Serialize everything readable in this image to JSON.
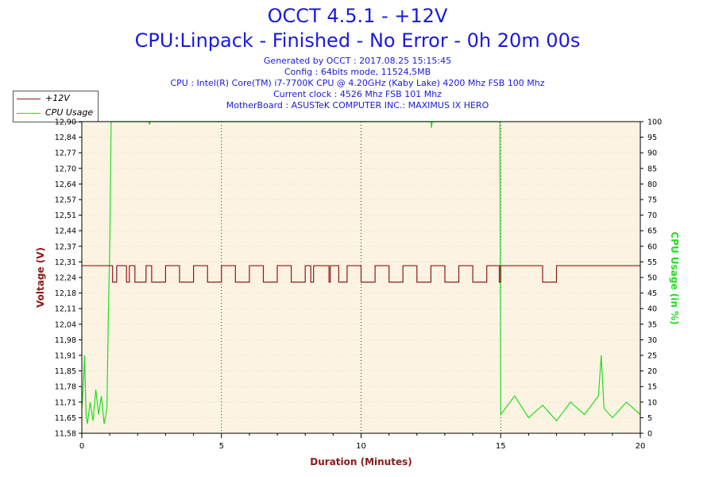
{
  "header": {
    "title": "OCCT 4.5.1 - +12V",
    "subtitle": "CPU:Linpack - Finished - No Error - 0h 20m 00s",
    "info_lines": [
      "Generated by OCCT : 2017.08.25 15:15:45",
      "Config : 64bits mode, 11524,5MB",
      "CPU : Intel(R) Core(TM) i7-7700K CPU @ 4.20GHz (Kaby Lake) 4200 Mhz FSB 100 Mhz",
      "Current clock : 4526 Mhz FSB 101 Mhz",
      "MotherBoard : ASUSTeK COMPUTER INC.: MAXIMUS IX HERO"
    ]
  },
  "colors": {
    "voltage": "#8b1a1a",
    "cpu_usage": "#22dd22",
    "plot_bg": "#fcf3e2",
    "grid": "#000000",
    "title": "#1a1adb"
  },
  "chart_data": {
    "type": "line",
    "xlabel": "Duration (Minutes)",
    "ylabel_left": "Voltage (V)",
    "ylabel_right": "CPU Usage (in %)",
    "xlim": [
      0,
      20
    ],
    "ylim_left": [
      11.58,
      12.9
    ],
    "ylim_right": [
      0,
      100
    ],
    "x_ticks": [
      "0",
      "5",
      "10",
      "15",
      "20"
    ],
    "y_left_ticks": [
      "11,58",
      "11,65",
      "11,71",
      "11,78",
      "11,85",
      "11,91",
      "11,98",
      "12,04",
      "12,11",
      "12,18",
      "12,24",
      "12,31",
      "12,37",
      "12,44",
      "12,51",
      "12,57",
      "12,64",
      "12,70",
      "12,77",
      "12,84",
      "12,90"
    ],
    "y_right_ticks": [
      "0",
      "5",
      "10",
      "15",
      "20",
      "25",
      "30",
      "35",
      "40",
      "45",
      "50",
      "55",
      "60",
      "65",
      "70",
      "75",
      "80",
      "85",
      "90",
      "95",
      "100"
    ],
    "grid": "dotted",
    "legend_position": "top-left",
    "series": [
      {
        "name": "+12V",
        "axis": "left",
        "points": [
          [
            0,
            12.29
          ],
          [
            1.05,
            12.29
          ],
          [
            1.1,
            12.22
          ],
          [
            1.25,
            12.29
          ],
          [
            1.3,
            12.29
          ],
          [
            1.6,
            12.22
          ],
          [
            1.7,
            12.29
          ],
          [
            1.9,
            12.22
          ],
          [
            2.0,
            12.22
          ],
          [
            2.3,
            12.29
          ],
          [
            2.5,
            12.22
          ],
          [
            3.0,
            12.29
          ],
          [
            3.5,
            12.22
          ],
          [
            4.0,
            12.29
          ],
          [
            4.5,
            12.22
          ],
          [
            5.0,
            12.29
          ],
          [
            5.5,
            12.22
          ],
          [
            6.0,
            12.29
          ],
          [
            6.5,
            12.22
          ],
          [
            7.0,
            12.29
          ],
          [
            7.5,
            12.22
          ],
          [
            8.0,
            12.29
          ],
          [
            8.2,
            12.22
          ],
          [
            8.3,
            12.29
          ],
          [
            8.8,
            12.29
          ],
          [
            8.85,
            12.22
          ],
          [
            8.9,
            12.29
          ],
          [
            9.1,
            12.29
          ],
          [
            9.2,
            12.22
          ],
          [
            9.5,
            12.29
          ],
          [
            10.0,
            12.22
          ],
          [
            10.5,
            12.29
          ],
          [
            11.0,
            12.22
          ],
          [
            11.5,
            12.29
          ],
          [
            12.0,
            12.22
          ],
          [
            12.5,
            12.29
          ],
          [
            13.0,
            12.22
          ],
          [
            13.5,
            12.29
          ],
          [
            14.0,
            12.22
          ],
          [
            14.5,
            12.29
          ],
          [
            14.95,
            12.22
          ],
          [
            15.0,
            12.29
          ],
          [
            16.45,
            12.29
          ],
          [
            16.5,
            12.22
          ],
          [
            16.95,
            12.22
          ],
          [
            17.0,
            12.29
          ],
          [
            20.0,
            12.29
          ]
        ]
      },
      {
        "name": "CPU Usage",
        "axis": "right",
        "points": [
          [
            0,
            8
          ],
          [
            0.05,
            15
          ],
          [
            0.1,
            25
          ],
          [
            0.15,
            6
          ],
          [
            0.2,
            3
          ],
          [
            0.3,
            10
          ],
          [
            0.4,
            4
          ],
          [
            0.5,
            14
          ],
          [
            0.6,
            6
          ],
          [
            0.7,
            12
          ],
          [
            0.8,
            3
          ],
          [
            0.9,
            8
          ],
          [
            0.95,
            38
          ],
          [
            1.0,
            60
          ],
          [
            1.05,
            100
          ],
          [
            2.4,
            100
          ],
          [
            2.42,
            99
          ],
          [
            2.45,
            100
          ],
          [
            12.5,
            100
          ],
          [
            12.52,
            98
          ],
          [
            12.55,
            100
          ],
          [
            14.97,
            100
          ],
          [
            15.0,
            6
          ],
          [
            15.5,
            12
          ],
          [
            16.0,
            5
          ],
          [
            16.5,
            9
          ],
          [
            17.0,
            4
          ],
          [
            17.5,
            10
          ],
          [
            18.0,
            6
          ],
          [
            18.5,
            12
          ],
          [
            18.6,
            25
          ],
          [
            18.7,
            8
          ],
          [
            19.0,
            5
          ],
          [
            19.5,
            10
          ],
          [
            20.0,
            6
          ]
        ]
      }
    ]
  }
}
